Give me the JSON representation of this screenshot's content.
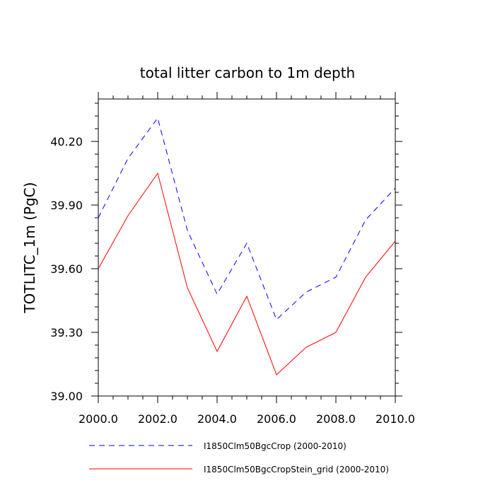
{
  "chart_data": {
    "type": "line",
    "title": "total litter carbon to 1m depth",
    "xlabel": "",
    "ylabel": "TOTLITC_1m  (PgC)",
    "xlim": [
      2000,
      2010
    ],
    "ylim": [
      39.0,
      40.4
    ],
    "xticks": [
      "2000.0",
      "2002.0",
      "2004.0",
      "2006.0",
      "2008.0",
      "2010.0"
    ],
    "yticks": [
      "39.00",
      "39.30",
      "39.60",
      "39.90",
      "40.20"
    ],
    "grid": false,
    "legend_position": "bottom",
    "x": [
      2000,
      2001,
      2002,
      2003,
      2004,
      2005,
      2006,
      2007,
      2008,
      2009,
      2010
    ],
    "series": [
      {
        "name": "I1850Clm50BgcCrop (2000-2010)",
        "color": "#0000ff",
        "dash": "dashed",
        "values": [
          39.84,
          40.12,
          40.31,
          39.78,
          39.48,
          39.72,
          39.36,
          39.49,
          39.56,
          39.83,
          39.98
        ]
      },
      {
        "name": "I1850Clm50BgcCropStein_grid (2000-2010)",
        "color": "#ff0000",
        "dash": "solid",
        "values": [
          39.6,
          39.85,
          40.05,
          39.51,
          39.21,
          39.47,
          39.1,
          39.23,
          39.3,
          39.56,
          39.73
        ]
      }
    ]
  }
}
